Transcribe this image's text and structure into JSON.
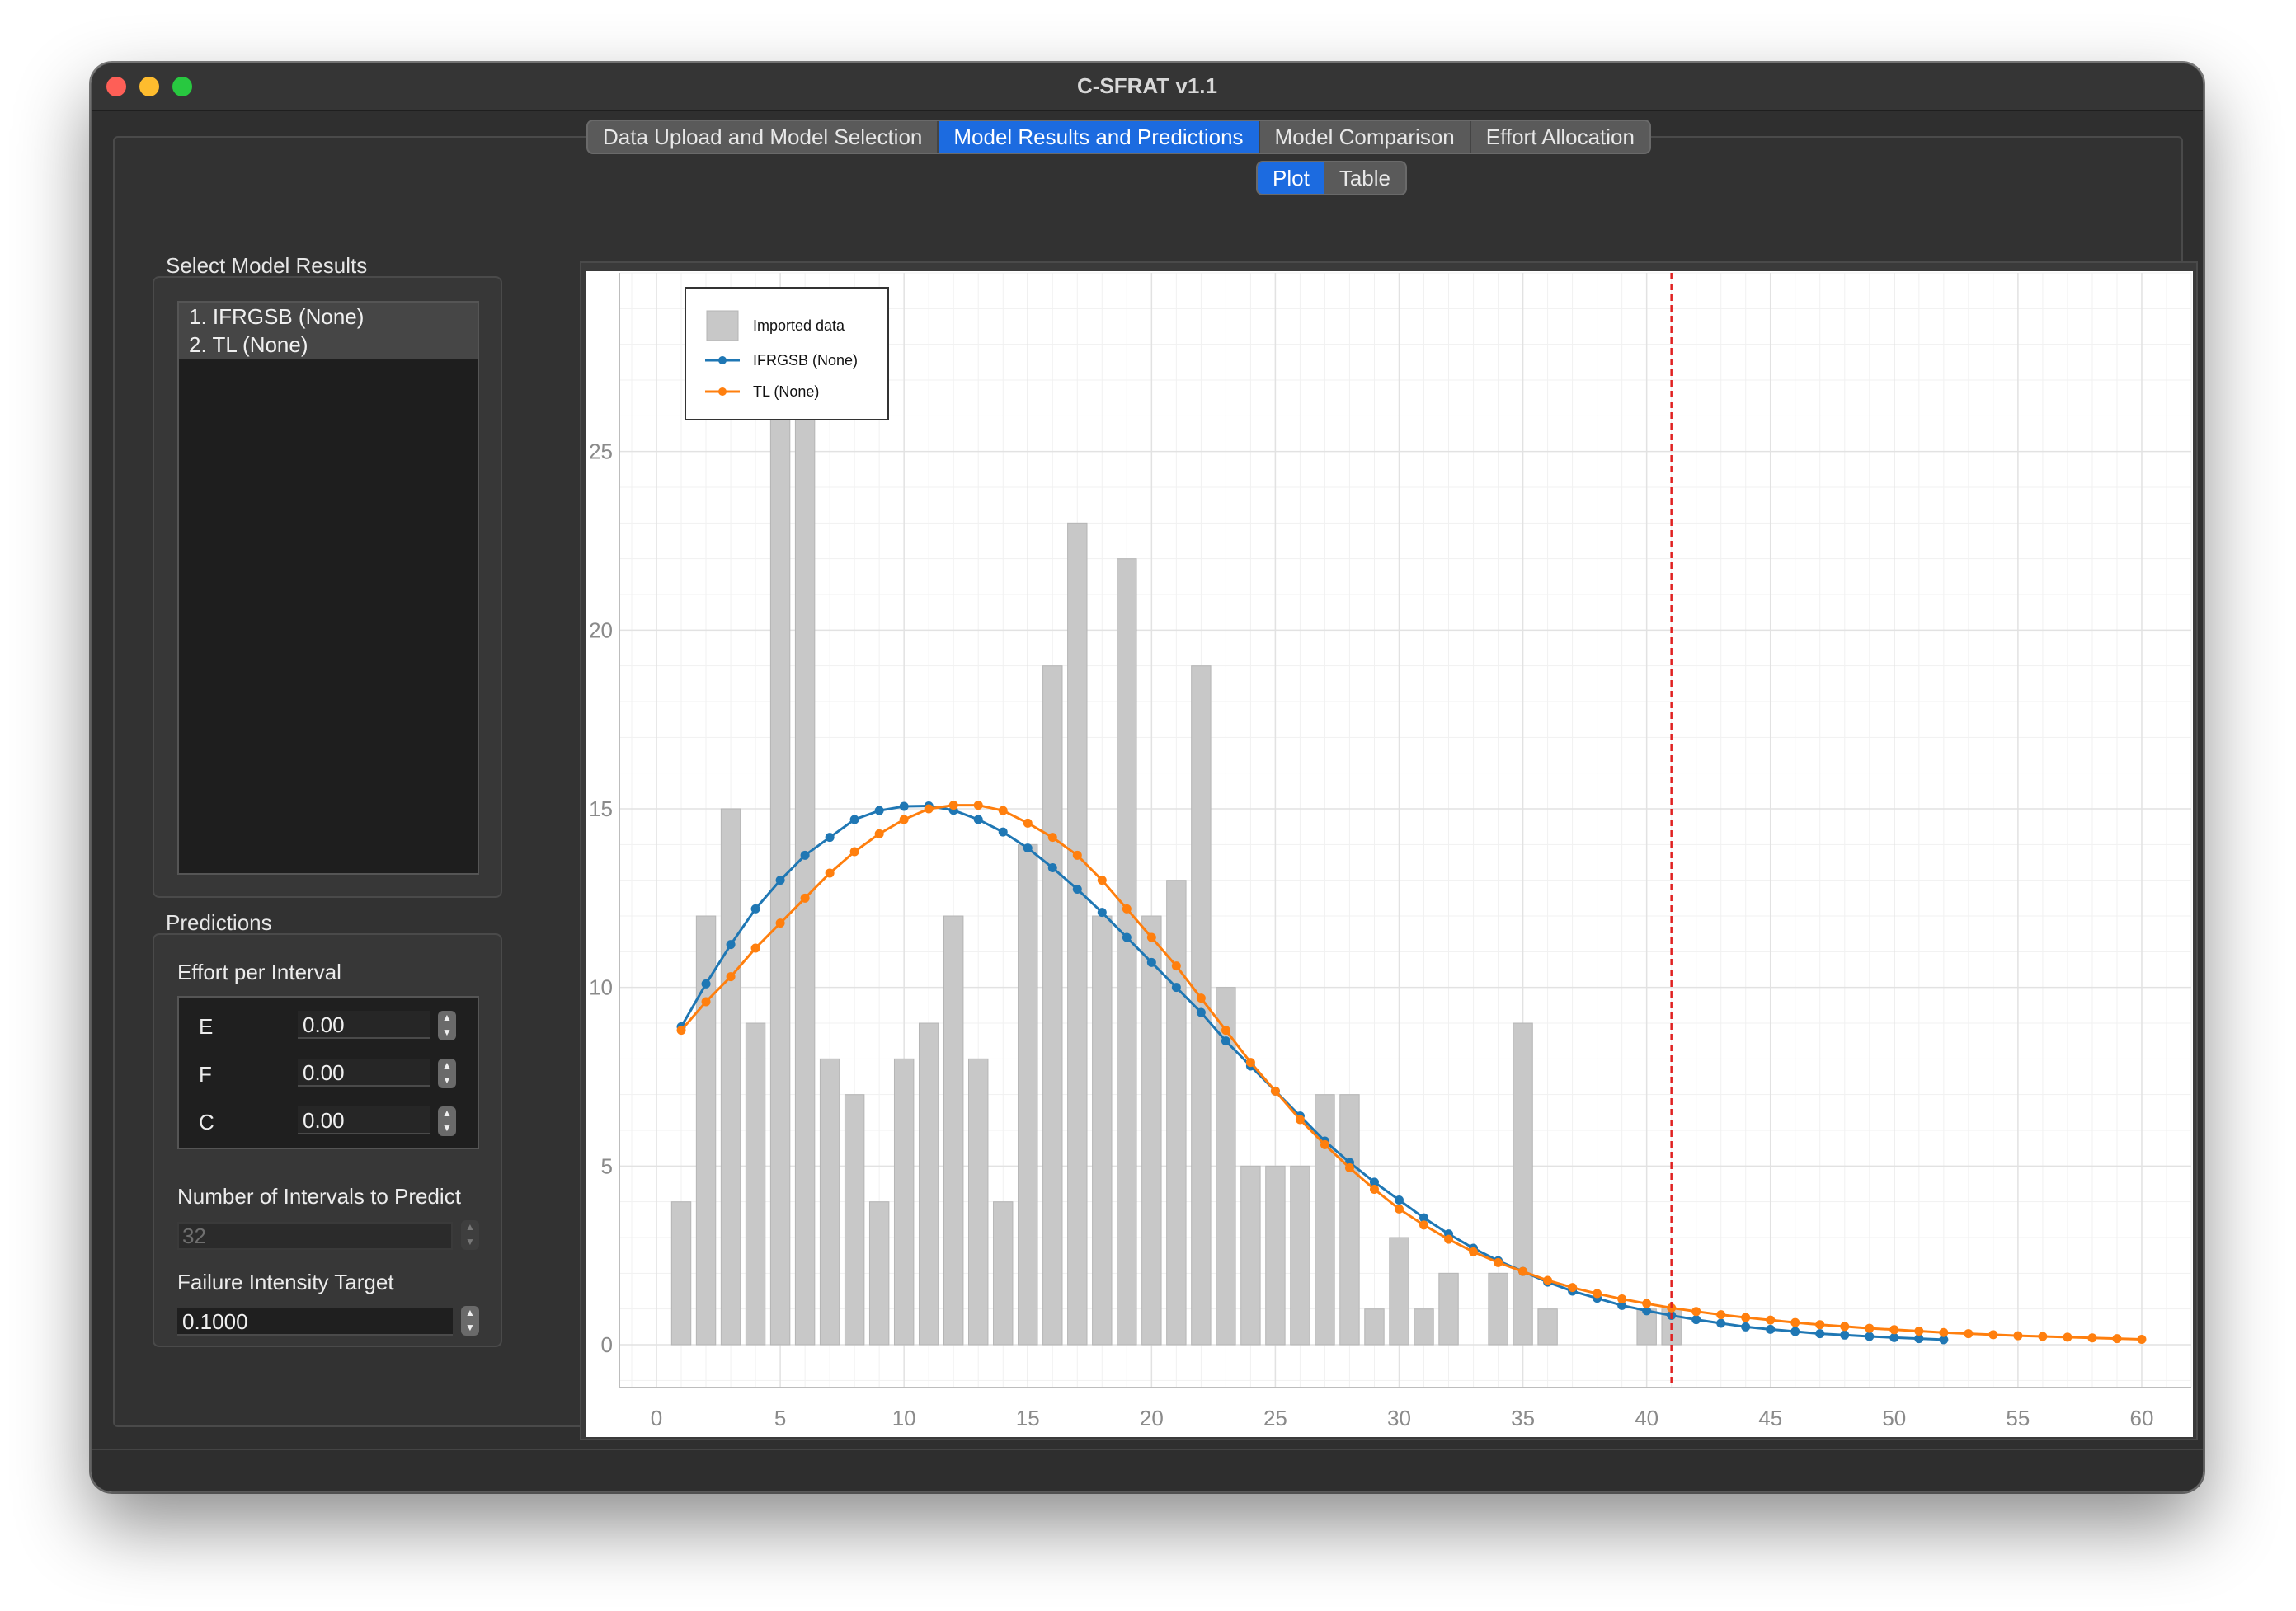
{
  "window": {
    "title": "C-SFRAT v1.1"
  },
  "tabs": [
    {
      "label": "Data Upload and Model Selection",
      "active": false
    },
    {
      "label": "Model Results and Predictions",
      "active": true
    },
    {
      "label": "Model Comparison",
      "active": false
    },
    {
      "label": "Effort Allocation",
      "active": false
    }
  ],
  "model_results": {
    "title": "Select Model Results",
    "items": [
      "1. IFRGSB (None)",
      "2. TL (None)"
    ]
  },
  "predictions": {
    "title": "Predictions",
    "effort_label": "Effort per Interval",
    "effort": [
      {
        "key": "E",
        "value": "0.00"
      },
      {
        "key": "F",
        "value": "0.00"
      },
      {
        "key": "C",
        "value": "0.00"
      }
    ],
    "intervals_label": "Number of Intervals to Predict",
    "intervals_value": "32",
    "intensity_label": "Failure Intensity Target",
    "intensity_value": "0.1000"
  },
  "view_tabs": [
    {
      "label": "Plot",
      "active": true
    },
    {
      "label": "Table",
      "active": false
    }
  ],
  "colors": {
    "accent": "#1c6be0",
    "bar": "#c8c8c8",
    "ifrgsb": "#1f77b4",
    "tl": "#ff7f0e",
    "marker_line": "#e02020"
  },
  "chart_data": {
    "type": "bar",
    "title": "",
    "xlabel": "",
    "ylabel": "",
    "xlim": [
      -1.5,
      62
    ],
    "ylim": [
      -1.2,
      30
    ],
    "xticks": [
      0,
      5,
      10,
      15,
      20,
      25,
      30,
      35,
      40,
      45,
      50,
      55,
      60
    ],
    "yticks": [
      0,
      5,
      10,
      15,
      20,
      25
    ],
    "grid": true,
    "legend_position": "top-left",
    "vertical_line_x": 41,
    "bars": {
      "name": "Imported data",
      "x": [
        1,
        2,
        3,
        4,
        5,
        6,
        7,
        8,
        9,
        10,
        11,
        12,
        13,
        14,
        15,
        16,
        17,
        18,
        19,
        20,
        21,
        22,
        23,
        24,
        25,
        26,
        27,
        28,
        29,
        30,
        31,
        32,
        33,
        34,
        35,
        36,
        37,
        38,
        39,
        40,
        41
      ],
      "values": [
        4,
        12,
        15,
        9,
        27,
        27,
        8,
        7,
        4,
        8,
        9,
        12,
        8,
        4,
        14,
        19,
        23,
        12,
        22,
        12,
        13,
        19,
        10,
        5,
        5,
        5,
        7,
        7,
        1,
        3,
        1,
        2,
        0,
        2,
        9,
        1,
        0,
        0,
        0,
        1,
        1
      ]
    },
    "series": [
      {
        "name": "IFRGSB (None)",
        "x": [
          1,
          2,
          3,
          4,
          5,
          6,
          7,
          8,
          9,
          10,
          11,
          12,
          13,
          14,
          15,
          16,
          17,
          18,
          19,
          20,
          21,
          22,
          23,
          24,
          25,
          26,
          27,
          28,
          29,
          30,
          31,
          32,
          33,
          34,
          35,
          36,
          37,
          38,
          39,
          40,
          41,
          42,
          43,
          44,
          45,
          46,
          47,
          48,
          49,
          50,
          51,
          52
        ],
        "values": [
          8.9,
          10.1,
          11.2,
          12.2,
          13.0,
          13.7,
          14.2,
          14.7,
          14.95,
          15.07,
          15.08,
          14.96,
          14.7,
          14.35,
          13.9,
          13.35,
          12.75,
          12.1,
          11.4,
          10.7,
          10.0,
          9.3,
          8.5,
          7.8,
          7.1,
          6.4,
          5.7,
          5.1,
          4.55,
          4.05,
          3.55,
          3.1,
          2.7,
          2.35,
          2.05,
          1.75,
          1.5,
          1.3,
          1.1,
          0.95,
          0.82,
          0.7,
          0.6,
          0.5,
          0.43,
          0.37,
          0.31,
          0.27,
          0.23,
          0.2,
          0.17,
          0.14
        ]
      },
      {
        "name": "TL (None)",
        "x": [
          1,
          2,
          3,
          4,
          5,
          6,
          7,
          8,
          9,
          10,
          11,
          12,
          13,
          14,
          15,
          16,
          17,
          18,
          19,
          20,
          21,
          22,
          23,
          24,
          25,
          26,
          27,
          28,
          29,
          30,
          31,
          32,
          33,
          34,
          35,
          36,
          37,
          38,
          39,
          40,
          41,
          42,
          43,
          44,
          45,
          46,
          47,
          48,
          49,
          50,
          51,
          52,
          53,
          54,
          55,
          56,
          57,
          58,
          59,
          60
        ],
        "values": [
          8.8,
          9.6,
          10.3,
          11.1,
          11.8,
          12.5,
          13.2,
          13.8,
          14.3,
          14.7,
          15.0,
          15.1,
          15.1,
          14.95,
          14.6,
          14.2,
          13.7,
          13.0,
          12.2,
          11.4,
          10.6,
          9.7,
          8.8,
          7.9,
          7.1,
          6.3,
          5.6,
          4.95,
          4.35,
          3.8,
          3.35,
          2.95,
          2.6,
          2.3,
          2.05,
          1.8,
          1.6,
          1.43,
          1.28,
          1.15,
          1.03,
          0.93,
          0.84,
          0.76,
          0.69,
          0.62,
          0.56,
          0.51,
          0.46,
          0.42,
          0.38,
          0.34,
          0.31,
          0.28,
          0.25,
          0.23,
          0.21,
          0.19,
          0.17,
          0.15
        ]
      }
    ]
  }
}
